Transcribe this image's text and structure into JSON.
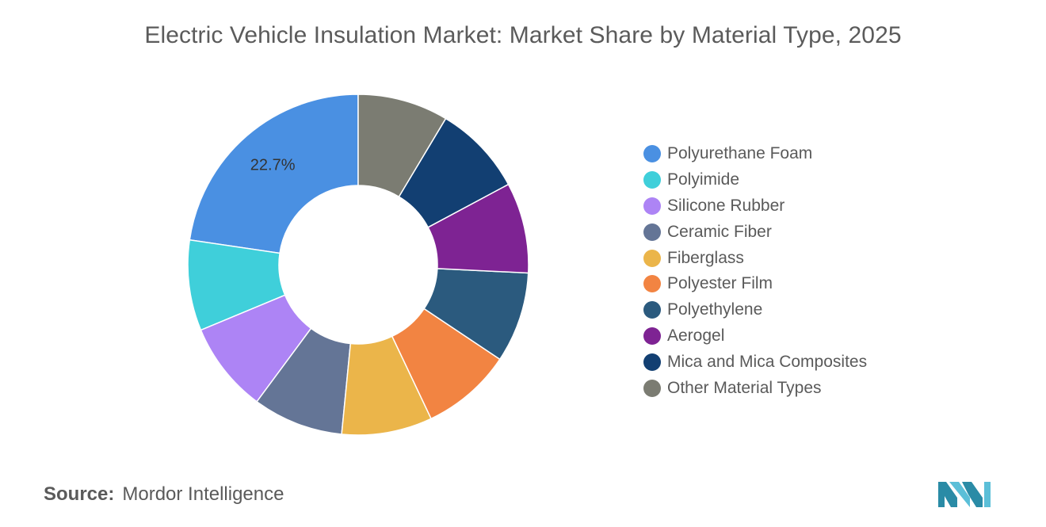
{
  "chart_data": {
    "type": "pie",
    "title": "Electric Vehicle Insulation Market: Market Share by Material Type, 2025",
    "categories": [
      "Polyurethane Foam",
      "Polyimide",
      "Silicone Rubber",
      "Ceramic Fiber",
      "Fiberglass",
      "Polyester Film",
      "Polyethylene",
      "Aerogel",
      "Mica and Mica Composites",
      "Other Material Types"
    ],
    "values": [
      22.7,
      8.6,
      8.6,
      8.6,
      8.6,
      8.6,
      8.6,
      8.6,
      8.6,
      8.6
    ],
    "colors": [
      "#4a90e2",
      "#3fcfda",
      "#ad84f5",
      "#647596",
      "#ebb54a",
      "#f28442",
      "#2b5a7e",
      "#7e2393",
      "#123f72",
      "#7b7c72"
    ],
    "data_labels": [
      "22.7%",
      "",
      "",
      "",
      "",
      "",
      "",
      "",
      "",
      ""
    ],
    "hole": "donut",
    "legend": "right"
  },
  "source": {
    "label": "Source:",
    "name": "Mordor Intelligence"
  },
  "logo": {
    "icon": "mordor-intelligence-logo-icon",
    "colors": [
      "#2a8ba6",
      "#5bbfd8"
    ]
  }
}
